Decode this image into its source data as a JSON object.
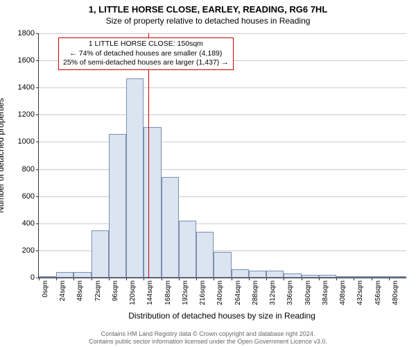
{
  "chart": {
    "type": "histogram",
    "title": "1, LITTLE HORSE CLOSE, EARLEY, READING, RG6 7HL",
    "subtitle": "Size of property relative to detached houses in Reading",
    "xlabel": "Distribution of detached houses by size in Reading",
    "ylabel": "Number of detached properties",
    "ylim": [
      0,
      1800
    ],
    "ytick_step": 200,
    "xlim": [
      0,
      504
    ],
    "xtick_step": 24,
    "x_unit": "sqm",
    "bar_color": "#dbe4f1",
    "bar_border": "#7a8fb0",
    "grid_color": "#cccccc",
    "axis_color": "#333333",
    "background_color": "#ffffff",
    "title_fontsize": 13,
    "subtitle_fontsize": 12,
    "label_fontsize": 12,
    "tick_fontsize": 11,
    "bins": [
      {
        "x": 0,
        "count": 10
      },
      {
        "x": 24,
        "count": 40
      },
      {
        "x": 48,
        "count": 40
      },
      {
        "x": 72,
        "count": 350
      },
      {
        "x": 96,
        "count": 1060
      },
      {
        "x": 120,
        "count": 1470
      },
      {
        "x": 144,
        "count": 1110
      },
      {
        "x": 168,
        "count": 740
      },
      {
        "x": 192,
        "count": 420
      },
      {
        "x": 216,
        "count": 340
      },
      {
        "x": 240,
        "count": 190
      },
      {
        "x": 264,
        "count": 60
      },
      {
        "x": 288,
        "count": 50
      },
      {
        "x": 312,
        "count": 50
      },
      {
        "x": 336,
        "count": 30
      },
      {
        "x": 360,
        "count": 20
      },
      {
        "x": 384,
        "count": 20
      },
      {
        "x": 408,
        "count": 10
      },
      {
        "x": 432,
        "count": 5
      },
      {
        "x": 456,
        "count": 10
      },
      {
        "x": 480,
        "count": 5
      }
    ],
    "marker": {
      "x": 150,
      "color": "#cc0000"
    },
    "annotation": {
      "line1": "1 LITTLE HORSE CLOSE: 150sqm",
      "line2": "← 74% of detached houses are smaller (4,189)",
      "line3": "25% of semi-detached houses are larger (1,437) →",
      "border_color": "#cc0000",
      "fontsize": 10.5
    }
  },
  "footer": {
    "line1": "Contains HM Land Registry data © Crown copyright and database right 2024.",
    "line2": "Contains public sector information licensed under the Open Government Licence v3.0."
  }
}
